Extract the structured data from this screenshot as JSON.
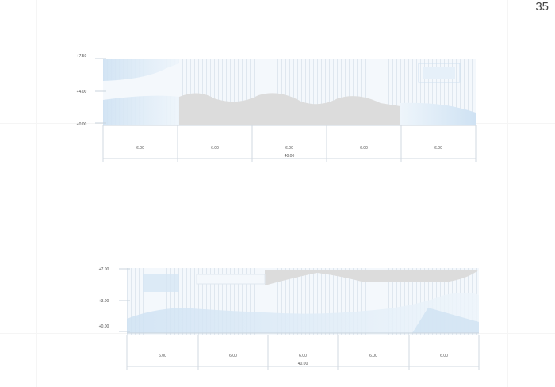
{
  "page": {
    "number": "35"
  },
  "elevation_top": {
    "levels": [
      "+7.50",
      "+4.00",
      "+0.00"
    ],
    "bays": [
      "6.00",
      "6.00",
      "6.00",
      "6.00",
      "6.00"
    ],
    "overall": "40.00"
  },
  "elevation_bottom": {
    "levels": [
      "+7.00",
      "+3.00",
      "+0.00"
    ],
    "bays": [
      "6.00",
      "6.00",
      "6.00",
      "6.00",
      "6.00"
    ],
    "overall": "40.00"
  },
  "colors": {
    "glass": "#d6e6f4",
    "glass_light": "#eaf2fa",
    "concrete": "#dcdcdc",
    "line": "#c9d3dc",
    "text": "#555555"
  }
}
